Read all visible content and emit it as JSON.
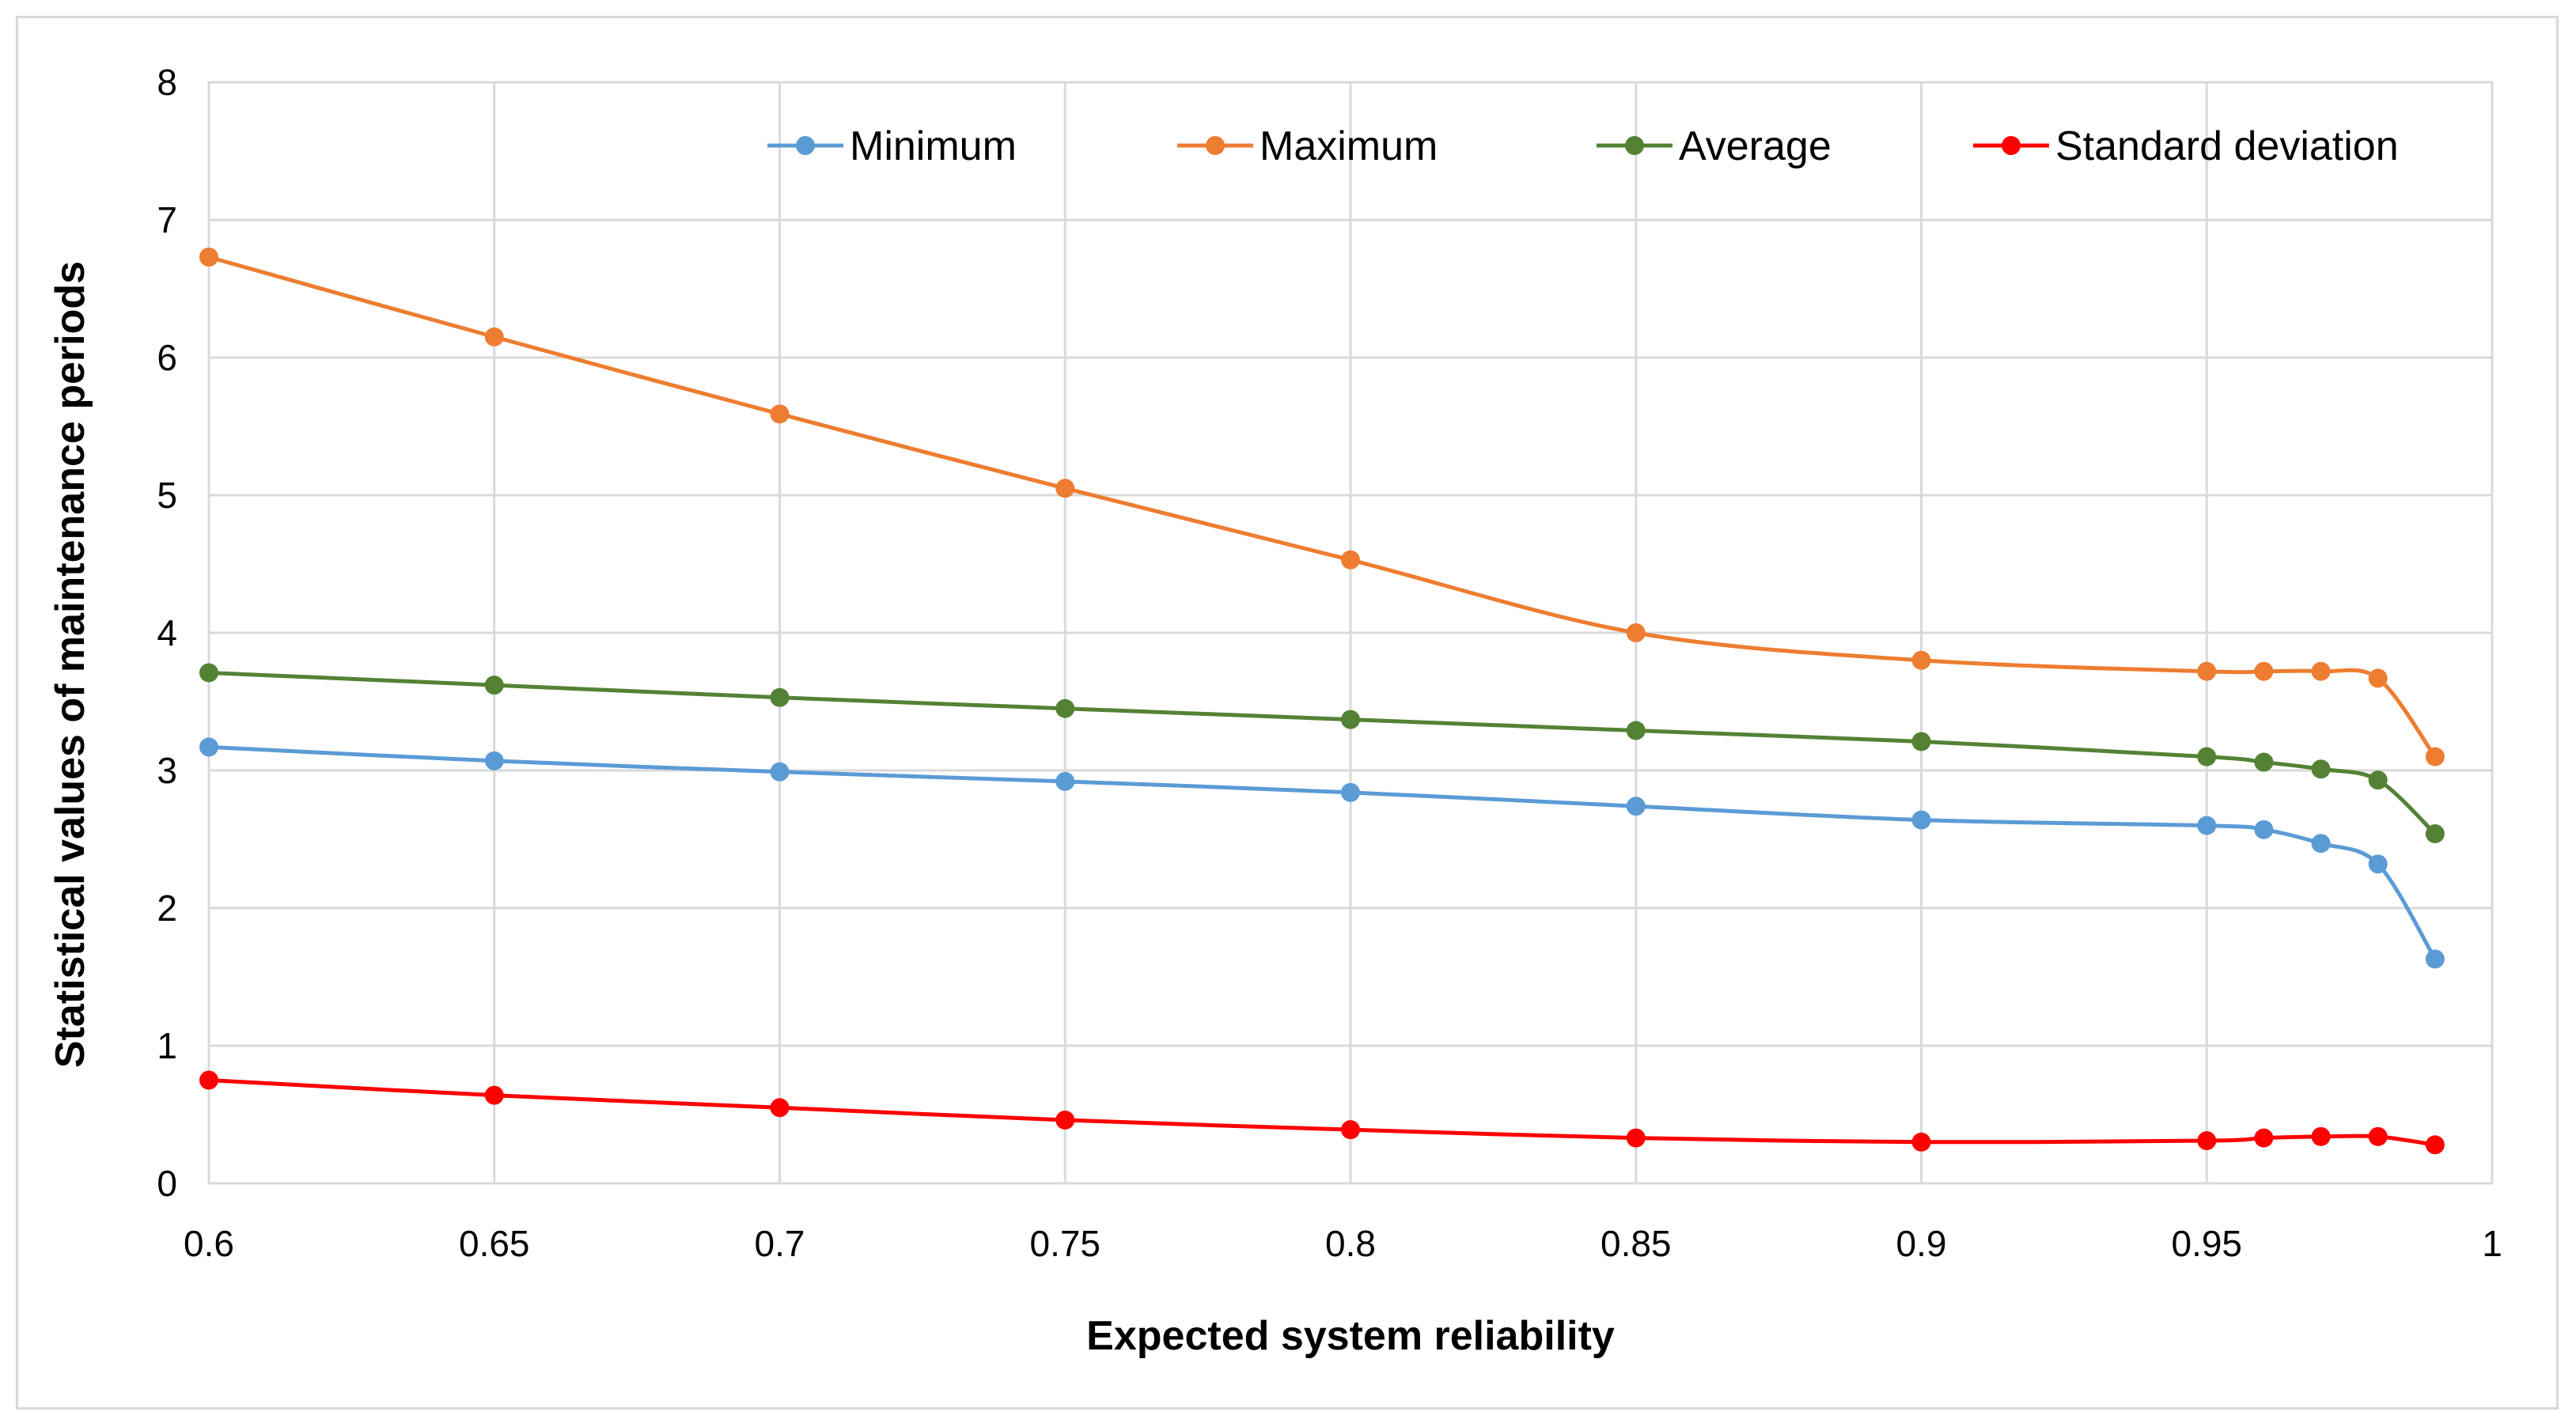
{
  "chart_data": {
    "type": "line",
    "title": "",
    "xlabel": "Expected system reliability",
    "ylabel": "Statistical values  of maintenance periods",
    "xlim": [
      0.6,
      1
    ],
    "ylim": [
      0,
      8
    ],
    "x_ticks": [
      "0.6",
      "0.65",
      "0.7",
      "0.75",
      "0.8",
      "0.85",
      "0.9",
      "0.95",
      "1"
    ],
    "y_ticks": [
      "0",
      "1",
      "2",
      "3",
      "4",
      "5",
      "6",
      "7",
      "8"
    ],
    "grid": true,
    "legend_position": "top",
    "x": [
      0.6,
      0.65,
      0.7,
      0.75,
      0.8,
      0.85,
      0.9,
      0.95,
      0.96,
      0.97,
      0.98,
      0.99
    ],
    "series": [
      {
        "name": "Minimum",
        "color": "#5b9bd5",
        "values": [
          3.17,
          3.07,
          2.99,
          2.92,
          2.84,
          2.74,
          2.64,
          2.6,
          2.57,
          2.47,
          2.32,
          1.63
        ]
      },
      {
        "name": "Maximum",
        "color": "#ed7d31",
        "values": [
          6.73,
          6.15,
          5.59,
          5.05,
          4.53,
          4.0,
          3.8,
          3.72,
          3.72,
          3.72,
          3.67,
          3.1
        ]
      },
      {
        "name": "Average",
        "color": "#548235",
        "values": [
          3.71,
          3.62,
          3.53,
          3.45,
          3.37,
          3.29,
          3.21,
          3.1,
          3.06,
          3.01,
          2.93,
          2.54
        ]
      },
      {
        "name": "Standard deviation",
        "color": "#ff0000",
        "values": [
          0.75,
          0.64,
          0.55,
          0.46,
          0.39,
          0.33,
          0.3,
          0.31,
          0.33,
          0.34,
          0.34,
          0.28
        ]
      }
    ]
  }
}
